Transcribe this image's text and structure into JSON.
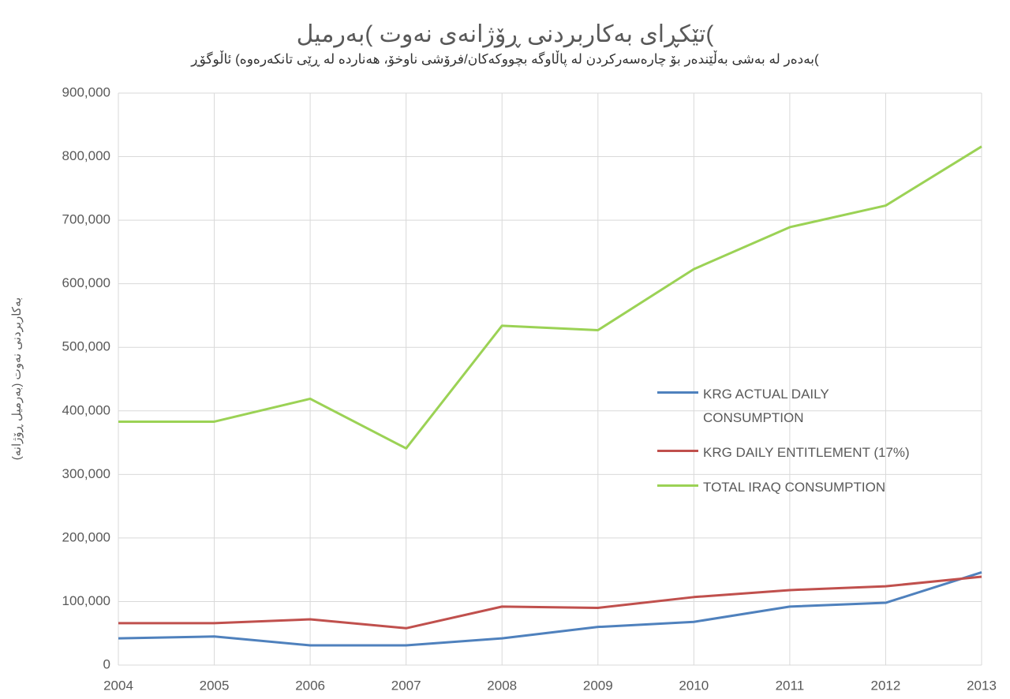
{
  "chart_data": {
    "type": "line",
    "title": "تێکڕای بەکاربردنی ڕۆژانەی نەوت )بەرمیل(",
    "subtitle": "بەدەر لە بەشی بەڵێندەر بۆ چارەسەرکردن لە پاڵاوگە بچووکەکان/فرۆشی ناوخۆ، هەناردە لە ڕێی تانکەرەوە) ئاڵوگۆڕ(",
    "y_label": "بەکاربردنی نەوت (بەرمیل ڕۆژانە)",
    "x": [
      2004,
      2005,
      2006,
      2007,
      2008,
      2009,
      2010,
      2011,
      2012,
      2013
    ],
    "xlim": [
      2004,
      2013
    ],
    "xticks": [
      2004,
      2005,
      2006,
      2007,
      2008,
      2009,
      2010,
      2011,
      2012,
      2013
    ],
    "ylim": [
      0,
      900000
    ],
    "yticks": [
      0,
      {
        "value": 100000,
        "label": "100,000"
      },
      {
        "value": 200000,
        "label": "200,000"
      },
      {
        "value": 300000,
        "label": "300,000"
      },
      {
        "value": 400000,
        "label": "400,000"
      },
      {
        "value": 500000,
        "label": "500,000"
      },
      {
        "value": 600000,
        "label": "600,000"
      },
      {
        "value": 700000,
        "label": "700,000"
      },
      {
        "value": 800000,
        "label": "800,000"
      },
      {
        "value": 900000,
        "label": "900,000"
      }
    ],
    "grid": true,
    "legend": "right",
    "series": [
      {
        "name": "KRG ACTUAL DAILY CONSUMPTION",
        "color": "#4f81bd",
        "values": [
          42000,
          45000,
          31000,
          31000,
          42000,
          60000,
          68000,
          92000,
          98000,
          146000
        ]
      },
      {
        "name": "KRG DAILY ENTITLEMENT (17%)",
        "color": "#c0504d",
        "values": [
          66000,
          66000,
          72000,
          58000,
          92000,
          90000,
          107000,
          118000,
          124000,
          139000
        ]
      },
      {
        "name": "TOTAL IRAQ CONSUMPTION",
        "color": "#9bd255",
        "values": [
          383000,
          383000,
          419000,
          341000,
          534000,
          527000,
          623000,
          689000,
          723000,
          816000
        ]
      }
    ]
  }
}
